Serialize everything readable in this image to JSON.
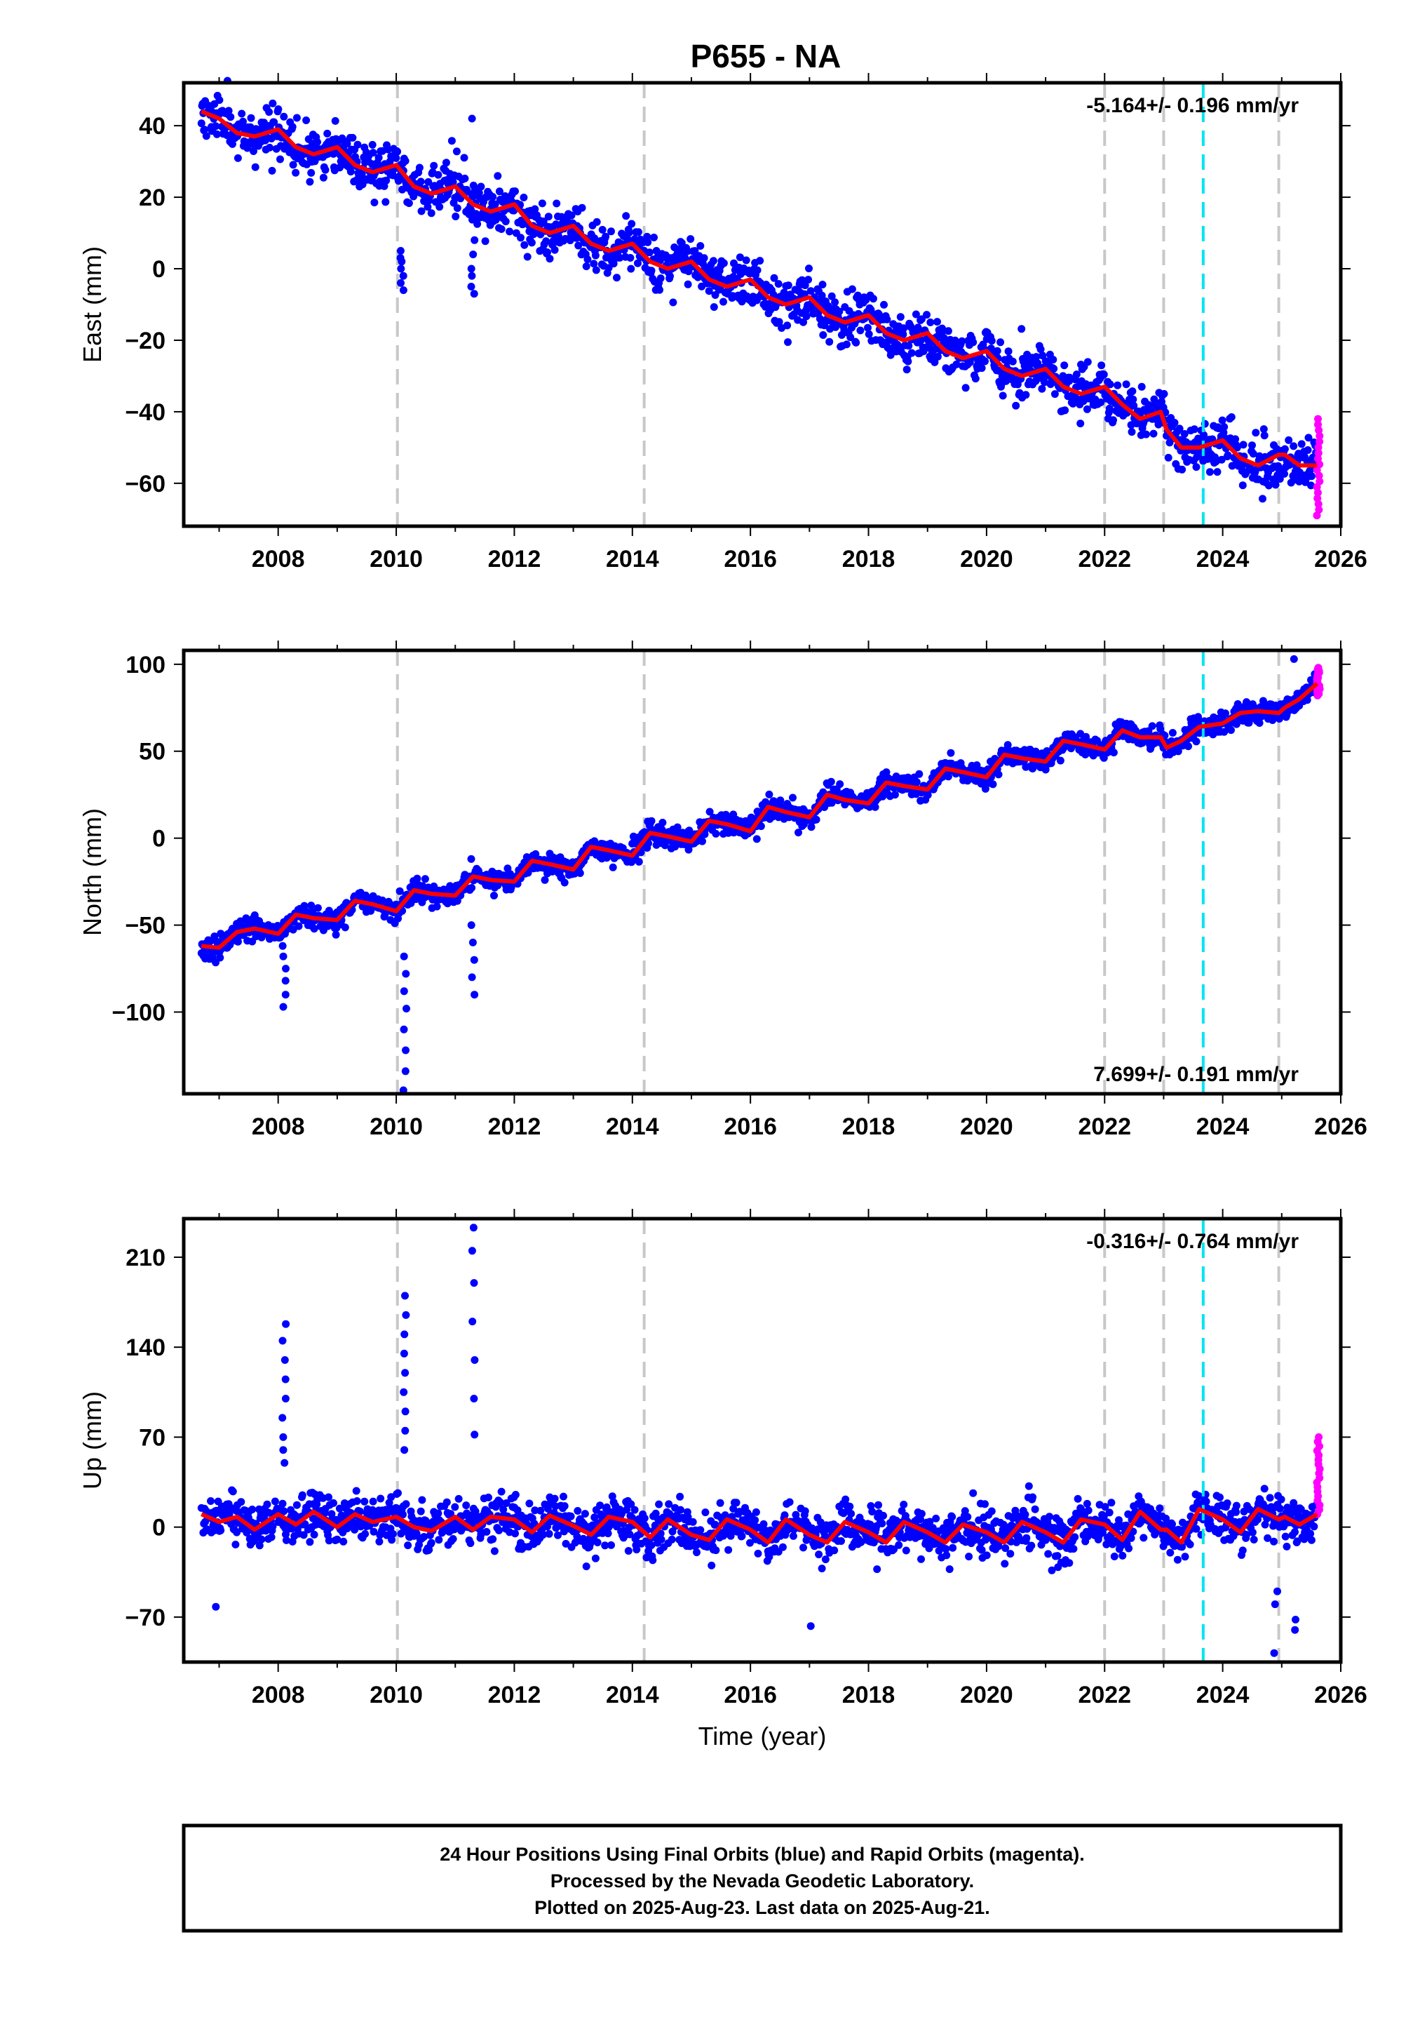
{
  "title": "P655 - NA",
  "colors": {
    "final_orbits": "#0000ff",
    "rapid_orbits": "#ff00ff",
    "model": "#ff0000",
    "equipment_change": "#c8c8c8",
    "earthquake": "#00e5f0",
    "frame": "#000000"
  },
  "footer": {
    "line1": "24 Hour Positions Using Final Orbits (blue) and Rapid Orbits (magenta).",
    "line2": "Processed by the Nevada Geodetic Laboratory.",
    "line3": "Plotted on 2025-Aug-23. Last data on 2025-Aug-21."
  },
  "chart_data": [
    {
      "type": "scatter",
      "ylabel": "East (mm)",
      "xlabel": "",
      "rate_label": "-5.164+/- 0.196 mm/yr",
      "rate_position": "top-right",
      "xlim": [
        2006.4,
        2026.0
      ],
      "ylim": [
        -72,
        52
      ],
      "xticks": [
        2008,
        2010,
        2012,
        2014,
        2016,
        2018,
        2020,
        2022,
        2024,
        2026
      ],
      "yticks": [
        -60,
        -40,
        -20,
        0,
        20,
        40
      ],
      "vlines_gray": [
        2010.02,
        2014.2,
        2022.0,
        2023.0,
        2024.95
      ],
      "vlines_cyan": [
        2023.67
      ],
      "model": {
        "x": [
          2006.7,
          2007.0,
          2007.3,
          2007.6,
          2008.0,
          2008.3,
          2008.6,
          2009.0,
          2009.3,
          2009.6,
          2010.0,
          2010.3,
          2010.6,
          2011.0,
          2011.3,
          2011.6,
          2012.0,
          2012.3,
          2012.6,
          2013.0,
          2013.3,
          2013.6,
          2014.0,
          2014.3,
          2014.6,
          2015.0,
          2015.3,
          2015.6,
          2016.0,
          2016.3,
          2016.6,
          2017.0,
          2017.3,
          2017.6,
          2018.0,
          2018.3,
          2018.6,
          2019.0,
          2019.3,
          2019.6,
          2020.0,
          2020.3,
          2020.6,
          2021.0,
          2021.3,
          2021.6,
          2022.0,
          2022.3,
          2022.6,
          2022.95,
          2023.05,
          2023.3,
          2023.6,
          2024.0,
          2024.3,
          2024.6,
          2024.95,
          2025.05,
          2025.3,
          2025.6
        ],
        "y": [
          44,
          42,
          38,
          37,
          39,
          34,
          32,
          34,
          29,
          27,
          29,
          23,
          21,
          23,
          18,
          16,
          18,
          12,
          10,
          12,
          7,
          5,
          7,
          2,
          0,
          2,
          -3,
          -5,
          -3,
          -8,
          -10,
          -8,
          -13,
          -15,
          -13,
          -18,
          -20,
          -18,
          -23,
          -25,
          -23,
          -28,
          -30,
          -28,
          -33,
          -35,
          -33,
          -38,
          -42,
          -40,
          -45,
          -50,
          -50,
          -48,
          -53,
          -55,
          -52,
          -52,
          -55,
          -55
        ]
      },
      "outliers": [
        {
          "x": 2010.1,
          "y": [
            5,
            3,
            2,
            0,
            -2,
            -4,
            -6
          ]
        },
        {
          "x": 2011.3,
          "y": [
            42,
            8,
            4,
            0,
            -2,
            -5,
            -7
          ]
        }
      ],
      "rapid": {
        "x": 2025.62,
        "ymin": -69,
        "ymax": -42
      },
      "noise": 3.5,
      "seed": 11
    },
    {
      "type": "scatter",
      "ylabel": "North (mm)",
      "xlabel": "",
      "rate_label": "7.699+/- 0.191 mm/yr",
      "rate_position": "bottom-right",
      "xlim": [
        2006.4,
        2026.0
      ],
      "ylim": [
        -147,
        108
      ],
      "xticks": [
        2008,
        2010,
        2012,
        2014,
        2016,
        2018,
        2020,
        2022,
        2024,
        2026
      ],
      "yticks": [
        -100,
        -50,
        0,
        50,
        100
      ],
      "vlines_gray": [
        2010.02,
        2014.2,
        2022.0,
        2023.0,
        2024.95
      ],
      "vlines_cyan": [
        2023.67
      ],
      "model": {
        "x": [
          2006.7,
          2007.0,
          2007.3,
          2007.6,
          2008.0,
          2008.3,
          2008.6,
          2009.0,
          2009.3,
          2009.6,
          2010.0,
          2010.3,
          2010.6,
          2011.0,
          2011.3,
          2011.6,
          2012.0,
          2012.3,
          2012.6,
          2013.0,
          2013.3,
          2013.6,
          2014.0,
          2014.3,
          2014.6,
          2015.0,
          2015.3,
          2015.6,
          2016.0,
          2016.3,
          2016.6,
          2017.0,
          2017.3,
          2017.6,
          2018.0,
          2018.3,
          2018.6,
          2019.0,
          2019.3,
          2019.6,
          2020.0,
          2020.3,
          2020.6,
          2021.0,
          2021.3,
          2021.6,
          2022.0,
          2022.3,
          2022.6,
          2022.95,
          2023.05,
          2023.3,
          2023.6,
          2024.0,
          2024.3,
          2024.6,
          2024.95,
          2025.05,
          2025.3,
          2025.6
        ],
        "y": [
          -62,
          -63,
          -54,
          -52,
          -55,
          -44,
          -46,
          -47,
          -36,
          -38,
          -42,
          -30,
          -32,
          -33,
          -22,
          -24,
          -25,
          -13,
          -15,
          -18,
          -5,
          -7,
          -10,
          3,
          1,
          -2,
          10,
          8,
          4,
          18,
          15,
          12,
          25,
          22,
          20,
          32,
          30,
          28,
          40,
          38,
          35,
          48,
          46,
          44,
          56,
          54,
          51,
          62,
          58,
          58,
          52,
          56,
          64,
          66,
          72,
          73,
          72,
          75,
          80,
          89
        ]
      },
      "outliers": [
        {
          "x": 2008.1,
          "y": [
            -55,
            -62,
            -68,
            -75,
            -82,
            -90,
            -97
          ]
        },
        {
          "x": 2010.15,
          "y": [
            -68,
            -78,
            -88,
            -98,
            -110,
            -122,
            -134,
            -145
          ]
        },
        {
          "x": 2011.3,
          "y": [
            -12,
            -50,
            -60,
            -70,
            -80,
            -90
          ]
        },
        {
          "x": 2025.2,
          "y": [
            103
          ]
        }
      ],
      "rapid": {
        "x": 2025.62,
        "ymin": 82,
        "ymax": 98
      },
      "noise": 3.2,
      "seed": 23
    },
    {
      "type": "scatter",
      "ylabel": "Up (mm)",
      "xlabel": "Time (year)",
      "rate_label": "-0.316+/- 0.764 mm/yr",
      "rate_position": "top-right",
      "xlim": [
        2006.4,
        2026.0
      ],
      "ylim": [
        -105,
        240
      ],
      "xticks": [
        2008,
        2010,
        2012,
        2014,
        2016,
        2018,
        2020,
        2022,
        2024,
        2026
      ],
      "yticks": [
        -70,
        0,
        70,
        140,
        210
      ],
      "vlines_gray": [
        2010.02,
        2014.2,
        2022.0,
        2023.0,
        2024.95
      ],
      "vlines_cyan": [
        2023.67
      ],
      "model": {
        "x": [
          2006.7,
          2007.0,
          2007.3,
          2007.6,
          2008.0,
          2008.3,
          2008.6,
          2009.0,
          2009.3,
          2009.6,
          2010.0,
          2010.3,
          2010.6,
          2011.0,
          2011.3,
          2011.6,
          2012.0,
          2012.3,
          2012.6,
          2013.0,
          2013.3,
          2013.6,
          2014.0,
          2014.3,
          2014.6,
          2015.0,
          2015.3,
          2015.6,
          2016.0,
          2016.3,
          2016.6,
          2017.0,
          2017.3,
          2017.6,
          2018.0,
          2018.3,
          2018.6,
          2019.0,
          2019.3,
          2019.6,
          2020.0,
          2020.3,
          2020.6,
          2021.0,
          2021.3,
          2021.6,
          2022.0,
          2022.3,
          2022.6,
          2022.95,
          2023.05,
          2023.3,
          2023.6,
          2024.0,
          2024.3,
          2024.6,
          2024.95,
          2025.05,
          2025.3,
          2025.6
        ],
        "y": [
          10,
          4,
          8,
          -2,
          10,
          2,
          12,
          0,
          10,
          4,
          8,
          0,
          -3,
          8,
          -2,
          8,
          6,
          -4,
          9,
          1,
          -6,
          8,
          4,
          -8,
          6,
          -6,
          -10,
          6,
          -2,
          -12,
          6,
          -6,
          -12,
          4,
          -4,
          -12,
          4,
          -4,
          -12,
          2,
          -4,
          -12,
          4,
          -4,
          -12,
          6,
          2,
          -10,
          12,
          -2,
          -2,
          -12,
          14,
          6,
          -4,
          14,
          6,
          8,
          2,
          10
        ]
      },
      "outliers": [
        {
          "x": 2006.95,
          "y": [
            -62
          ]
        },
        {
          "x": 2008.1,
          "y": [
            50,
            60,
            70,
            85,
            100,
            115,
            130,
            145,
            158
          ]
        },
        {
          "x": 2010.15,
          "y": [
            60,
            75,
            90,
            105,
            120,
            135,
            150,
            165,
            180
          ]
        },
        {
          "x": 2011.3,
          "y": [
            72,
            100,
            130,
            160,
            190,
            215,
            233
          ]
        },
        {
          "x": 2017.0,
          "y": [
            -77
          ]
        },
        {
          "x": 2024.9,
          "y": [
            -98,
            -60,
            -50
          ]
        },
        {
          "x": 2025.25,
          "y": [
            -72,
            -80
          ]
        }
      ],
      "rapid": {
        "x": 2025.62,
        "ymin": 10,
        "ymax": 70
      },
      "noise": 9.0,
      "seed": 37
    }
  ]
}
